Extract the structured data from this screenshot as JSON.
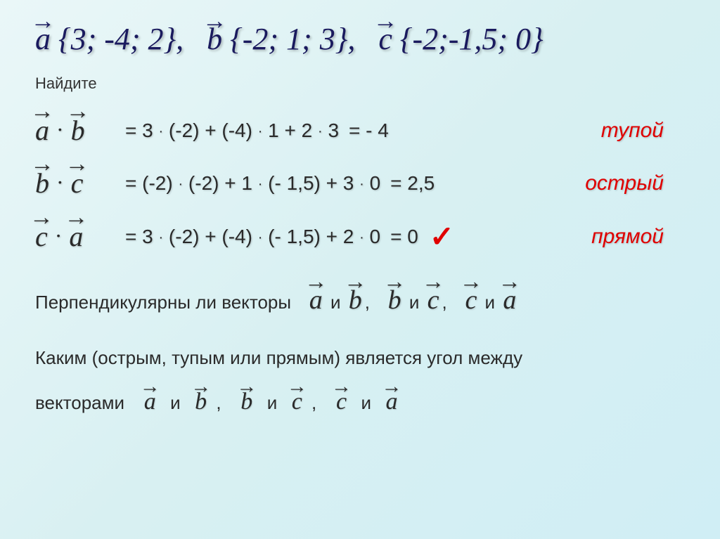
{
  "header": {
    "a_coords": "{3; -4; 2}",
    "b_coords": "{-2; 1; 3}",
    "c_coords": "{-2;-1,5; 0}"
  },
  "find_label": "Найдите",
  "rows": [
    {
      "left_a": "a",
      "left_b": "b",
      "expr": "= 3 · (-2) + (-4) · 1 + 2 · 3",
      "result": "= - 4",
      "angle": "тупой",
      "check": false
    },
    {
      "left_a": "b",
      "left_b": "c",
      "expr": "= (-2) · (-2) + 1 · (- 1,5) + 3 · 0",
      "result": "= 2,5",
      "angle": "острый",
      "check": false
    },
    {
      "left_a": "c",
      "left_b": "a",
      "expr": "= 3 · (-2) + (-4) · (- 1,5) + 2 · 0",
      "result": "= 0",
      "angle": "прямой",
      "check": true
    }
  ],
  "q1_prefix": "Перпендикулярны ли векторы",
  "q1_pairs": [
    {
      "a": "a",
      "b": "b"
    },
    {
      "a": "b",
      "b": "c"
    },
    {
      "a": "c",
      "b": "a"
    }
  ],
  "q2_line1": "Каким (острым, тупым или прямым) является угол между",
  "q2_line2_prefix": "векторами",
  "q2_pairs": [
    {
      "a": "a",
      "b": "b"
    },
    {
      "a": "b",
      "b": "c"
    },
    {
      "a": "c",
      "b": "a"
    }
  ],
  "and": "и",
  "comma": ","
}
